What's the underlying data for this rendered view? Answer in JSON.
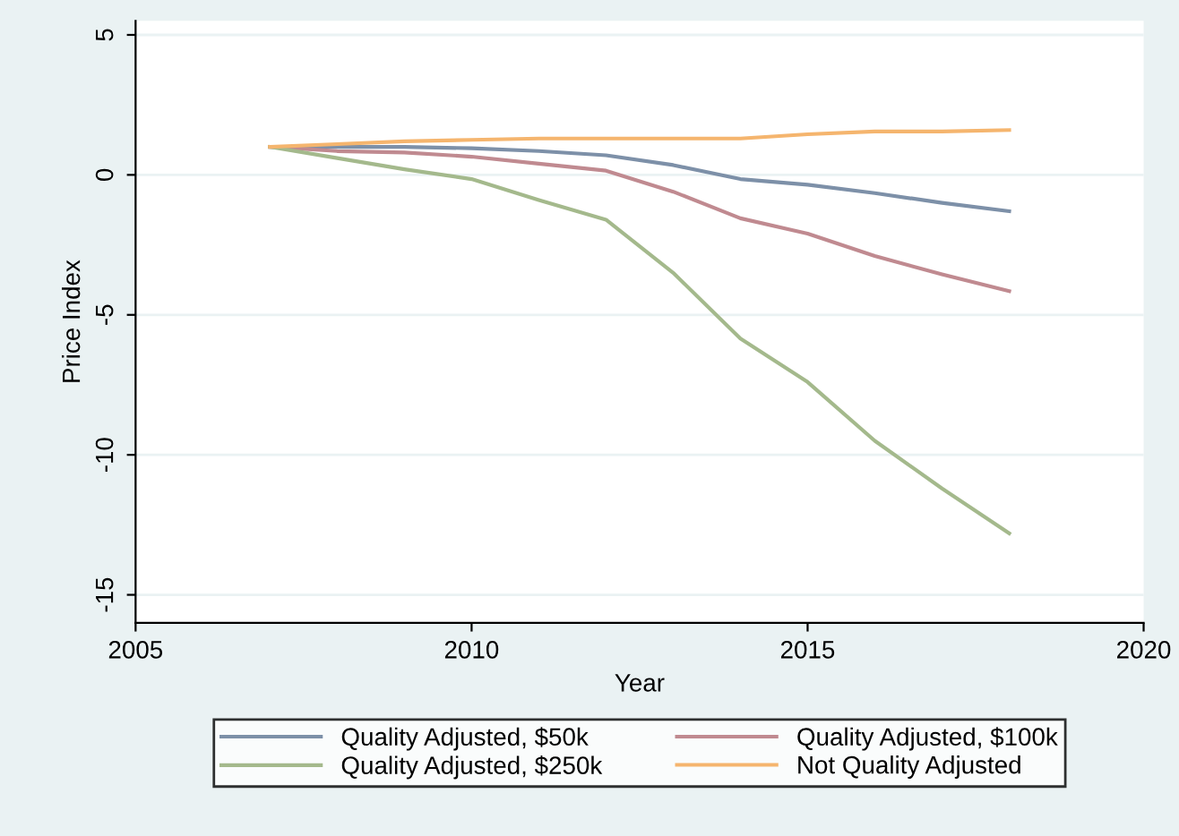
{
  "chart_data": {
    "type": "line",
    "xlabel": "Year",
    "ylabel": "Price Index",
    "xlim": [
      2005,
      2020
    ],
    "xticks": [
      2005,
      2010,
      2015,
      2020
    ],
    "ylim": [
      -16,
      5.5
    ],
    "yticks": [
      -15,
      -10,
      -5,
      0,
      5
    ],
    "grid": "y",
    "legend": "bottom",
    "marker": "none",
    "line_style": "solid",
    "x": [
      2007,
      2008,
      2009,
      2010,
      2011,
      2012,
      2013,
      2014,
      2015,
      2016,
      2017,
      2018
    ],
    "series": [
      {
        "name": "Quality Adjusted, $50k",
        "color": "#7d90a8",
        "values": [
          1.0,
          1.0,
          1.0,
          0.95,
          0.85,
          0.7,
          0.35,
          -0.15,
          -0.35,
          -0.65,
          -1.0,
          -1.3
        ]
      },
      {
        "name": "Quality Adjusted, $100k",
        "color": "#c08a90",
        "values": [
          1.0,
          0.85,
          0.8,
          0.65,
          0.4,
          0.15,
          -0.6,
          -1.55,
          -2.1,
          -2.9,
          -3.55,
          -4.15
        ]
      },
      {
        "name": "Quality Adjusted, $250k",
        "color": "#a4b98c",
        "values": [
          1.0,
          0.6,
          0.2,
          -0.15,
          -0.9,
          -1.6,
          -3.5,
          -5.85,
          -7.4,
          -9.5,
          -11.2,
          -12.8
        ]
      },
      {
        "name": "Not Quality Adjusted",
        "color": "#f5b56e",
        "values": [
          1.0,
          1.1,
          1.2,
          1.25,
          1.3,
          1.3,
          1.3,
          1.3,
          1.45,
          1.55,
          1.55,
          1.6
        ]
      }
    ]
  }
}
